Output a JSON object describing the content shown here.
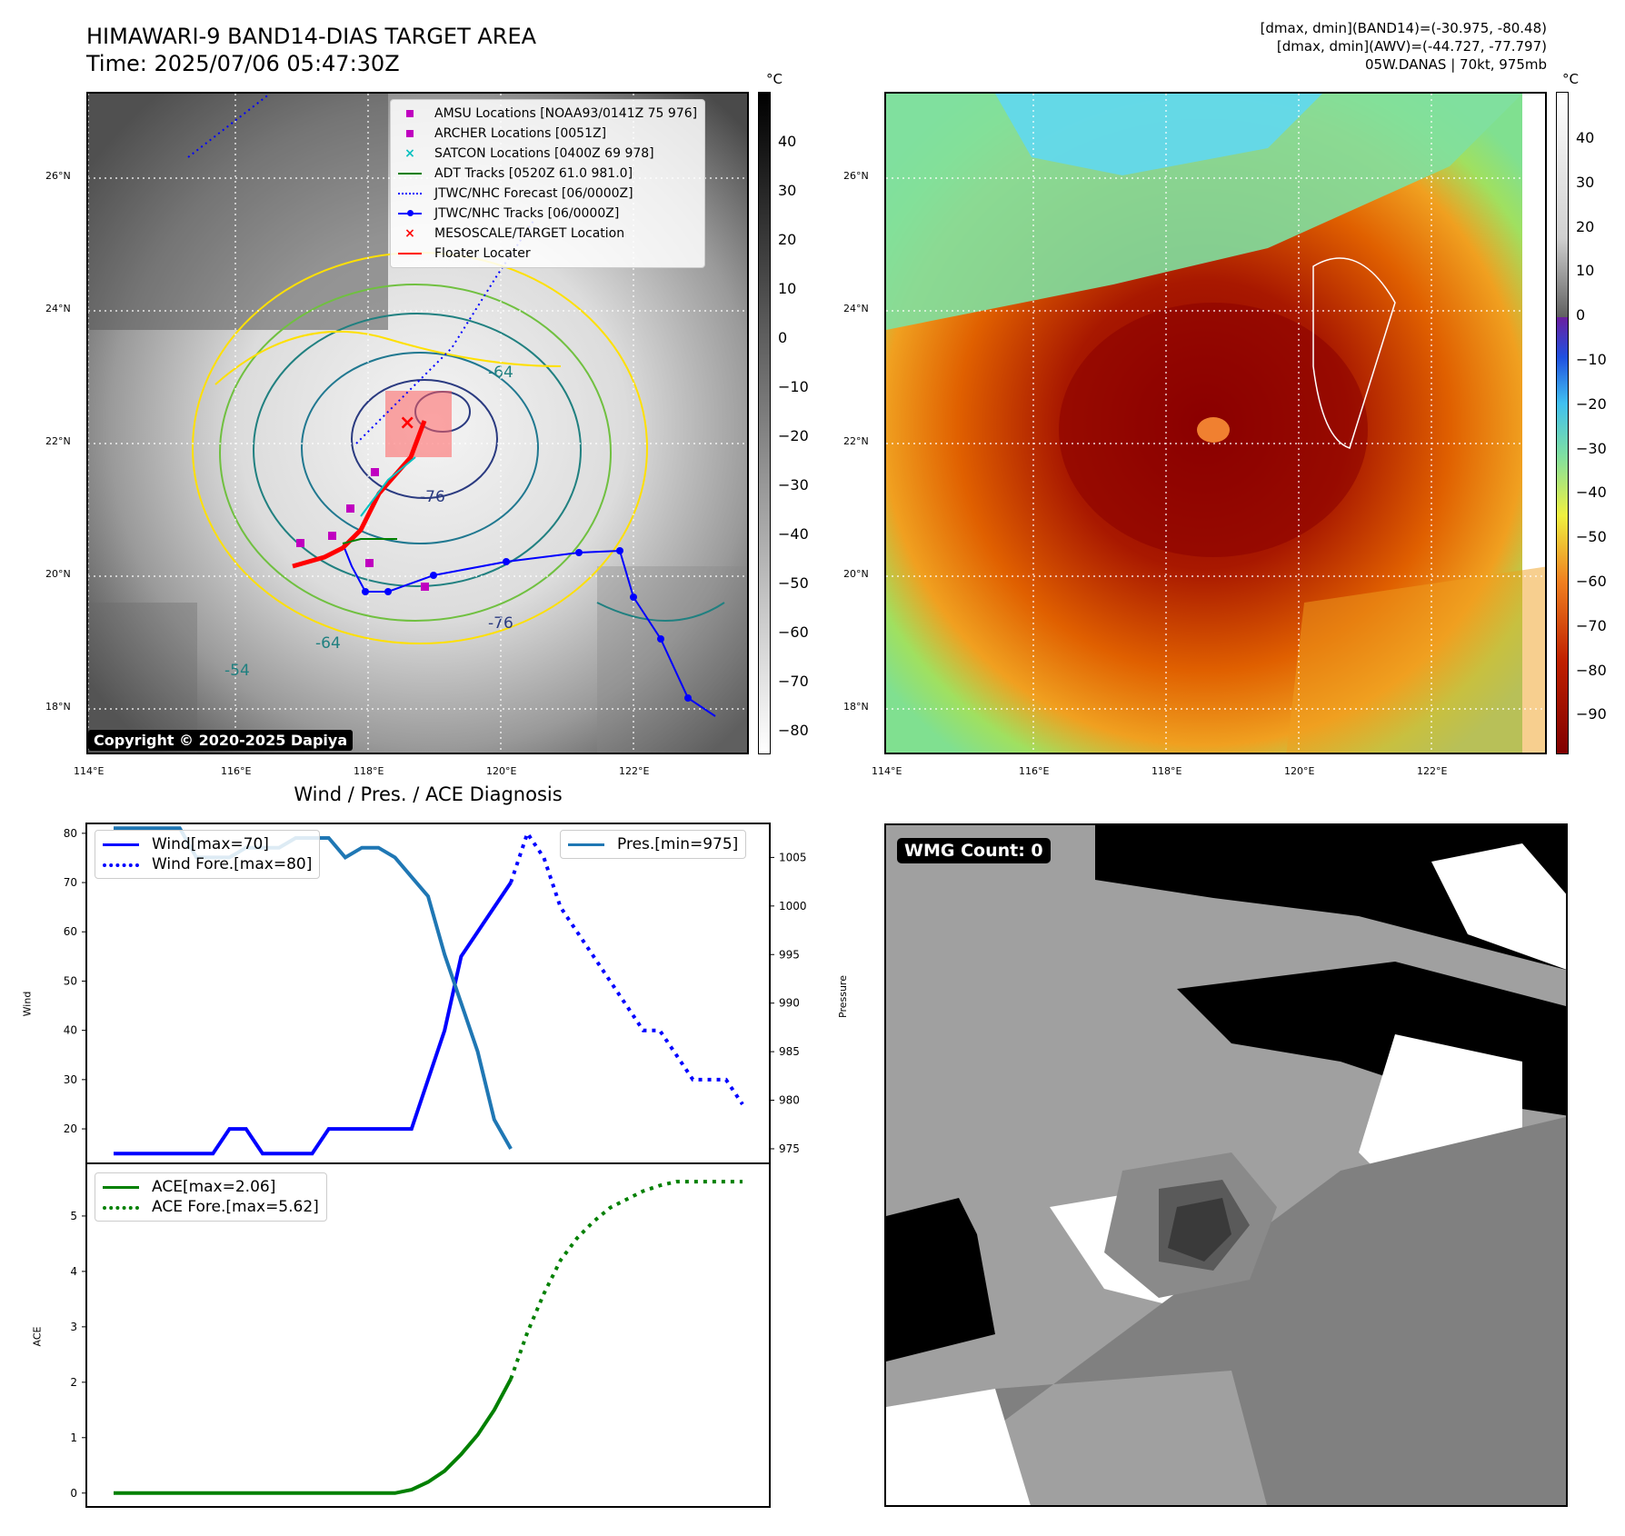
{
  "header": {
    "title_line1": "HIMAWARI-9 BAND14-DIAS TARGET AREA",
    "title_line2": "Time: 2025/07/06 05:47:30Z",
    "right_line1": "[dmax, dmin](BAND14)=(-30.975, -80.48)",
    "right_line2": "[dmax, dmin](AWV)=(-44.727, -77.797)",
    "right_line3": "05W.DANAS | 70kt, 975mb"
  },
  "map_axes": {
    "lat_labels": [
      "26°N",
      "24°N",
      "22°N",
      "20°N",
      "18°N"
    ],
    "lon_labels": [
      "114°E",
      "116°E",
      "118°E",
      "120°E",
      "122°E"
    ]
  },
  "ir_panel": {
    "legend": [
      {
        "label": "AMSU Locations [NOAA93/0141Z 75 976]",
        "color": "#c000c0",
        "symbol": "square"
      },
      {
        "label": "ARCHER Locations [0051Z]",
        "color": "#c000c0",
        "symbol": "square"
      },
      {
        "label": "SATCON Locations [0400Z 69 978]",
        "color": "#00c0c0",
        "symbol": "x"
      },
      {
        "label": "ADT Tracks [0520Z 61.0 981.0]",
        "color": "#008000",
        "symbol": "line"
      },
      {
        "label": "JTWC/NHC Forecast [06/0000Z]",
        "color": "#0000ff",
        "symbol": "dotted"
      },
      {
        "label": "JTWC/NHC Tracks [06/0000Z]",
        "color": "#0000ff",
        "symbol": "line-dot"
      },
      {
        "label": "MESOSCALE/TARGET Location",
        "color": "#ff0000",
        "symbol": "x"
      },
      {
        "label": "Floater Locater",
        "color": "#ff0000",
        "symbol": "line"
      }
    ],
    "contour_labels": [
      "-76",
      "-64",
      "-54",
      "-76",
      "-64"
    ],
    "copyright": "Copyright © 2020-2025 Dapiya",
    "colorbar_unit": "°C",
    "colorbar_ticks": [
      "40",
      "30",
      "20",
      "10",
      "0",
      "−10",
      "−20",
      "−30",
      "−40",
      "−50",
      "−60",
      "−70",
      "−80"
    ]
  },
  "awv_panel": {
    "colorbar_unit": "°C",
    "colorbar_ticks": [
      "40",
      "30",
      "20",
      "10",
      "0",
      "−10",
      "−20",
      "−30",
      "−40",
      "−50",
      "−60",
      "−70",
      "−80",
      "−90"
    ]
  },
  "wmg_panel": {
    "label": "WMG Count: 0"
  },
  "chart_data": [
    {
      "type": "line",
      "title": "Wind / Pres. / ACE Diagnosis",
      "ylabel": "Wind",
      "y2label": "Pressure",
      "ylim": [
        13,
        82
      ],
      "y2lim": [
        973.5,
        1008.5
      ],
      "yticks": [
        20,
        30,
        40,
        50,
        60,
        70,
        80
      ],
      "y2ticks": [
        975,
        980,
        985,
        990,
        995,
        1000,
        1005
      ],
      "series": [
        {
          "name": "Wind[max=70]",
          "color": "#0000ff",
          "style": "solid",
          "axis": "left",
          "x": [
            0,
            4,
            5,
            6,
            7,
            8,
            9,
            10,
            11,
            12,
            13,
            14,
            15,
            16,
            17,
            18,
            19,
            20,
            21,
            22,
            23,
            24
          ],
          "values": [
            15,
            15,
            15,
            15,
            20,
            20,
            15,
            15,
            15,
            15,
            20,
            20,
            20,
            20,
            20,
            20,
            30,
            40,
            55,
            60,
            65,
            70
          ]
        },
        {
          "name": "Wind Fore.[max=80]",
          "color": "#0000ff",
          "style": "dotted",
          "axis": "left",
          "x": [
            24,
            25,
            26,
            27,
            28,
            29,
            30,
            31,
            32,
            33,
            34,
            35,
            36,
            37,
            38
          ],
          "values": [
            70,
            80,
            75,
            65,
            60,
            55,
            50,
            45,
            40,
            40,
            35,
            30,
            30,
            30,
            25
          ]
        },
        {
          "name": "Pres.[min=975]",
          "color": "#1f77b4",
          "style": "solid",
          "axis": "right",
          "x": [
            0,
            4,
            5,
            6,
            7,
            8,
            9,
            10,
            11,
            12,
            13,
            14,
            15,
            16,
            17,
            18,
            19,
            20,
            21,
            22,
            23,
            24
          ],
          "values": [
            1008,
            1008,
            1005,
            1005,
            1005,
            1006,
            1006,
            1006,
            1007,
            1007,
            1007,
            1005,
            1006,
            1006,
            1005,
            1003,
            1001,
            995,
            990,
            985,
            978,
            975
          ]
        }
      ]
    },
    {
      "type": "line",
      "ylabel": "ACE",
      "ylim": [
        -0.25,
        5.95
      ],
      "yticks": [
        0,
        1,
        2,
        3,
        4,
        5
      ],
      "series": [
        {
          "name": "ACE[max=2.06]",
          "color": "#008000",
          "style": "solid",
          "x": [
            0,
            17,
            18,
            19,
            20,
            21,
            22,
            23,
            24
          ],
          "values": [
            0,
            0,
            0.06,
            0.2,
            0.4,
            0.7,
            1.05,
            1.5,
            2.06
          ]
        },
        {
          "name": "ACE Fore.[max=5.62]",
          "color": "#008000",
          "style": "dotted",
          "x": [
            24,
            25,
            26,
            27,
            28,
            29,
            30,
            31,
            32,
            33,
            34,
            35,
            36,
            37,
            38
          ],
          "values": [
            2.06,
            2.9,
            3.6,
            4.2,
            4.6,
            4.9,
            5.15,
            5.3,
            5.45,
            5.55,
            5.62,
            5.62,
            5.62,
            5.62,
            5.62
          ]
        }
      ]
    }
  ]
}
